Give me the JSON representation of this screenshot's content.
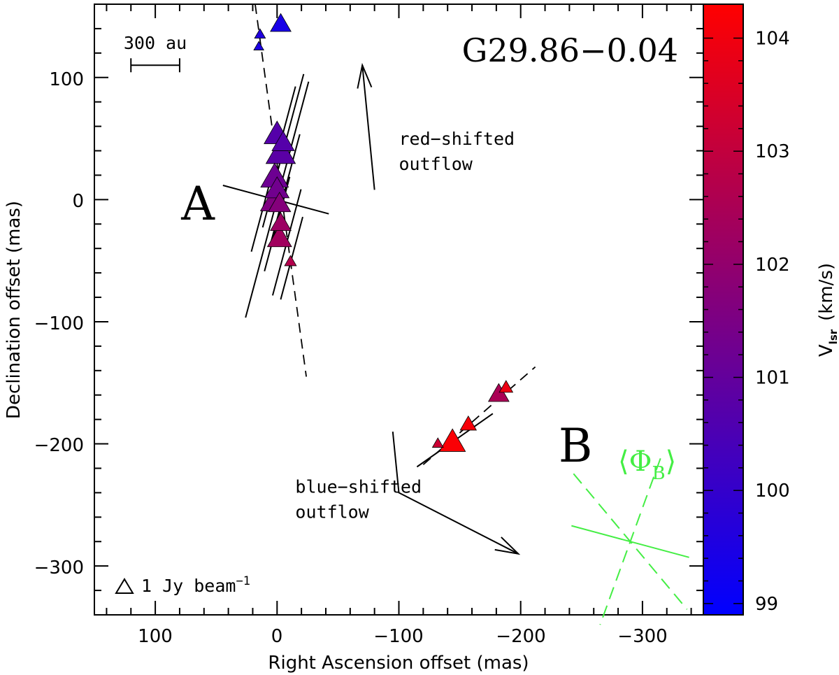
{
  "chart_data": {
    "type": "scatter",
    "title": "G29.86−0.04",
    "xlabel": "Right Ascension offset (mas)",
    "ylabel": "Declination offset (mas)",
    "xlim": [
      150,
      -350
    ],
    "ylim": [
      -340,
      160
    ],
    "xticks": [
      100,
      0,
      -100,
      -200,
      -300
    ],
    "xtick_labels": [
      "100",
      "0",
      "−100",
      "−200",
      "−300"
    ],
    "yticks": [
      100,
      0,
      -100,
      -200,
      -300
    ],
    "ytick_labels": [
      "100",
      "0",
      "−100",
      "−200",
      "−300"
    ],
    "colorbar": {
      "label_main": "V",
      "label_sub": "lsr",
      "label_unit": "(km/s)",
      "range": [
        98.9,
        104.3
      ],
      "ticks": [
        99,
        100,
        101,
        102,
        103,
        104
      ],
      "tick_labels": [
        "99",
        "100",
        "101",
        "102",
        "103",
        "104"
      ],
      "color_low": "#0000ff",
      "color_high": "#ff0000"
    },
    "scale_bar": {
      "label": "300 au",
      "x_start": 120,
      "x_end": 80,
      "y": 110
    },
    "legend": {
      "symbol": "△",
      "text": "1 Jy beam",
      "sup": "−1"
    },
    "group_labels": [
      {
        "text": "A",
        "x": 65,
        "y": -5
      },
      {
        "text": "B",
        "x": -245,
        "y": -203
      }
    ],
    "text_annotations": [
      {
        "lines": [
          "red−shifted",
          "outflow"
        ],
        "x": -100,
        "y": 45
      },
      {
        "lines": [
          "blue−shifted",
          "outflow"
        ],
        "x": -15,
        "y": -240
      }
    ],
    "outflow_arrows": [
      {
        "name": "red-shifted",
        "points": [
          [
            -80,
            8
          ],
          [
            -70,
            110
          ]
        ]
      },
      {
        "name": "blue-shifted",
        "points": [
          [
            -95,
            -190
          ],
          [
            -100,
            -240
          ],
          [
            -198,
            -290
          ]
        ]
      }
    ],
    "maser_spots": [
      {
        "group": "A",
        "x": -3,
        "y": 145,
        "v": 99.4,
        "flux": 0.8
      },
      {
        "group": "A",
        "x": 14,
        "y": 136,
        "v": 99.6,
        "flux": 0.25
      },
      {
        "group": "A",
        "x": 15,
        "y": 126,
        "v": 99.5,
        "flux": 0.2
      },
      {
        "group": "A",
        "x": 0,
        "y": 55,
        "v": 100.7,
        "flux": 1.1
      },
      {
        "group": "A",
        "x": -3,
        "y": 40,
        "v": 100.8,
        "flux": 1.3
      },
      {
        "group": "A",
        "x": -5,
        "y": 48,
        "v": 100.7,
        "flux": 0.9
      },
      {
        "group": "A",
        "x": 2,
        "y": 20,
        "v": 101.2,
        "flux": 1.2
      },
      {
        "group": "A",
        "x": 0,
        "y": 10,
        "v": 101.3,
        "flux": 1.0
      },
      {
        "group": "A",
        "x": 3,
        "y": 0,
        "v": 101.6,
        "flux": 1.1
      },
      {
        "group": "A",
        "x": -2,
        "y": -2,
        "v": 101.7,
        "flux": 0.9
      },
      {
        "group": "A",
        "x": -3,
        "y": -18,
        "v": 102.2,
        "flux": 0.8
      },
      {
        "group": "A",
        "x": -2,
        "y": -30,
        "v": 102.3,
        "flux": 1.0
      },
      {
        "group": "A",
        "x": -11,
        "y": -50,
        "v": 102.7,
        "flux": 0.3
      },
      {
        "group": "B",
        "x": -188,
        "y": -153,
        "v": 103.9,
        "flux": 0.4
      },
      {
        "group": "B",
        "x": -182,
        "y": -158,
        "v": 102.5,
        "flux": 0.8
      },
      {
        "group": "B",
        "x": -157,
        "y": -183,
        "v": 104.1,
        "flux": 0.55
      },
      {
        "group": "B",
        "x": -144,
        "y": -197,
        "v": 104.2,
        "flux": 1.1
      },
      {
        "group": "B",
        "x": -132,
        "y": -199,
        "v": 103.2,
        "flux": 0.25
      }
    ],
    "polarization_vectors": [
      {
        "x": 1,
        "y": 0,
        "pa": 75,
        "len": 90
      },
      {
        "x": 0,
        "y": 0,
        "pa": -15,
        "len": 200
      },
      {
        "x": 3,
        "y": 25,
        "pa": -15,
        "len": 140
      },
      {
        "x": -5,
        "y": 40,
        "pa": -15,
        "len": 130
      },
      {
        "x": -7,
        "y": 10,
        "pa": -15,
        "len": 90
      },
      {
        "x": 0,
        "y": -20,
        "pa": -15,
        "len": 80
      },
      {
        "x": -8,
        "y": -35,
        "pa": -15,
        "len": 90
      },
      {
        "x": -12,
        "y": -48,
        "pa": -15,
        "len": 70
      },
      {
        "x": -146,
        "y": -197,
        "pa": -55,
        "len": 76
      }
    ],
    "fitted_lines": [
      {
        "group": "A",
        "points": [
          [
            18,
            160
          ],
          [
            -24,
            -145
          ]
        ]
      },
      {
        "group": "B",
        "points": [
          [
            -120,
            -217
          ],
          [
            -212,
            -137
          ]
        ]
      }
    ],
    "mean_field": {
      "label_main": "Φ",
      "label_sub": "B",
      "center": [
        -290,
        -280
      ],
      "solid_pa": 75,
      "solid_len": 100,
      "dashed_pa": [
        -20,
        40
      ],
      "dashed_len": 145
    }
  },
  "colors": {
    "axis": "#000000",
    "mean_field": "#44ee44",
    "spot_stroke": "#000000"
  }
}
